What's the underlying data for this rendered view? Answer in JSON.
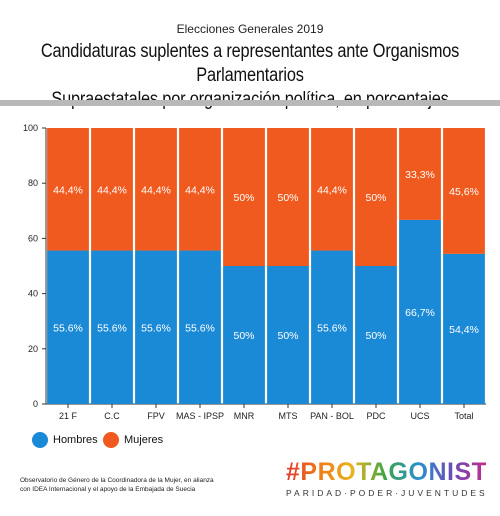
{
  "header": {
    "supertitle": "Elecciones Generales 2019",
    "title_line1": "Candidaturas suplentes a representantes ante Organismos Parlamentarios",
    "title_line2": "Supraestatales por organización política, en porcentajes"
  },
  "chart_data": {
    "type": "bar",
    "stacked": true,
    "categories": [
      "21 F",
      "C.C",
      "FPV",
      "MAS - IPSP",
      "MNR",
      "MTS",
      "PAN - BOL",
      "PDC",
      "UCS",
      "Total"
    ],
    "series": [
      {
        "name": "Hombres",
        "color": "#1a8ad6",
        "values": [
          55.6,
          55.6,
          55.6,
          55.6,
          50,
          50,
          55.6,
          50,
          66.7,
          54.4
        ],
        "labels": [
          "55.6%",
          "55.6%",
          "55.6%",
          "55.6%",
          "50%",
          "50%",
          "55.6%",
          "50%",
          "66,7%",
          "54,4%"
        ]
      },
      {
        "name": "Mujeres",
        "color": "#f05a1e",
        "values": [
          44.4,
          44.4,
          44.4,
          44.4,
          50,
          50,
          44.4,
          50,
          33.3,
          45.6
        ],
        "labels": [
          "44,4%",
          "44,4%",
          "44,4%",
          "44,4%",
          "50%",
          "50%",
          "44,4%",
          "50%",
          "33,3%",
          "45,6%"
        ]
      }
    ],
    "ylim": [
      0,
      100
    ],
    "yticks": [
      0,
      20,
      40,
      60,
      80,
      100
    ],
    "grid": false,
    "legend": "bottom-left"
  },
  "footer": {
    "note_line1": "Observatorio de Género de la Coordinadora de la Mujer, en alianza",
    "note_line2": "con IDEA Internacional y el apoyo de la Embajada de Suecia",
    "brand_name": "#PROTAGONISTAS",
    "brand_tagline": "PARIDAD·PODER·JUVENTUDES"
  }
}
